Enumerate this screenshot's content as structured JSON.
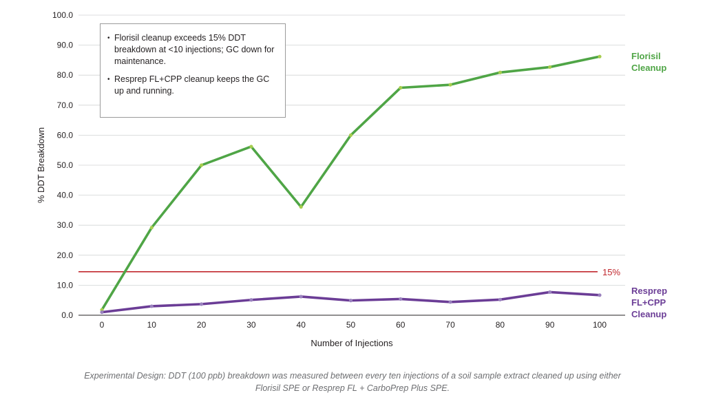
{
  "chart_data": {
    "type": "line",
    "title": "",
    "xlabel": "Number of Injections",
    "ylabel": "% DDT Breakdown",
    "x": [
      0,
      10,
      20,
      30,
      40,
      50,
      60,
      70,
      80,
      90,
      100
    ],
    "x_tick_labels": [
      "0",
      "10",
      "20",
      "30",
      "40",
      "50",
      "60",
      "70",
      "80",
      "90",
      "100"
    ],
    "y_tick_labels": [
      "0.0",
      "10.0",
      "20.0",
      "30.0",
      "40.0",
      "50.0",
      "60.0",
      "70.0",
      "80.0",
      "90.0",
      "100.0"
    ],
    "xlim": [
      0,
      100
    ],
    "ylim": [
      0,
      100
    ],
    "grid": "horizontal",
    "series": [
      {
        "name": "Florisil Cleanup",
        "label_lines": [
          "Florisil",
          "Cleanup"
        ],
        "line_color": "#4fa546",
        "marker_color": "#a6cd4e",
        "values": [
          1.8,
          29.2,
          50.0,
          56.2,
          36.1,
          60.0,
          75.8,
          76.8,
          80.9,
          82.7,
          86.2
        ]
      },
      {
        "name": "Resprep FL+CPP Cleanup",
        "label_lines": [
          "Resprep",
          "FL+CPP",
          "Cleanup"
        ],
        "line_color": "#6b3d96",
        "marker_color": "#9a82be",
        "values": [
          1.0,
          3.0,
          3.7,
          5.1,
          6.2,
          4.9,
          5.4,
          4.4,
          5.2,
          7.7,
          6.7
        ]
      }
    ],
    "reference_line": {
      "value": 14.5,
      "label": "15%",
      "color": "#c1272d"
    },
    "annotations": [
      "Florisil cleanup exceeds 15% DDT breakdown at <10 injections; GC down for maintenance.",
      "Resprep FL+CPP cleanup keeps the GC up and running."
    ],
    "caption": "Experimental Design: DDT (100 ppb) breakdown was measured between every ten injections of a soil sample extract cleaned up using either Florisil SPE or Resprep FL + CarboPrep Plus SPE."
  }
}
